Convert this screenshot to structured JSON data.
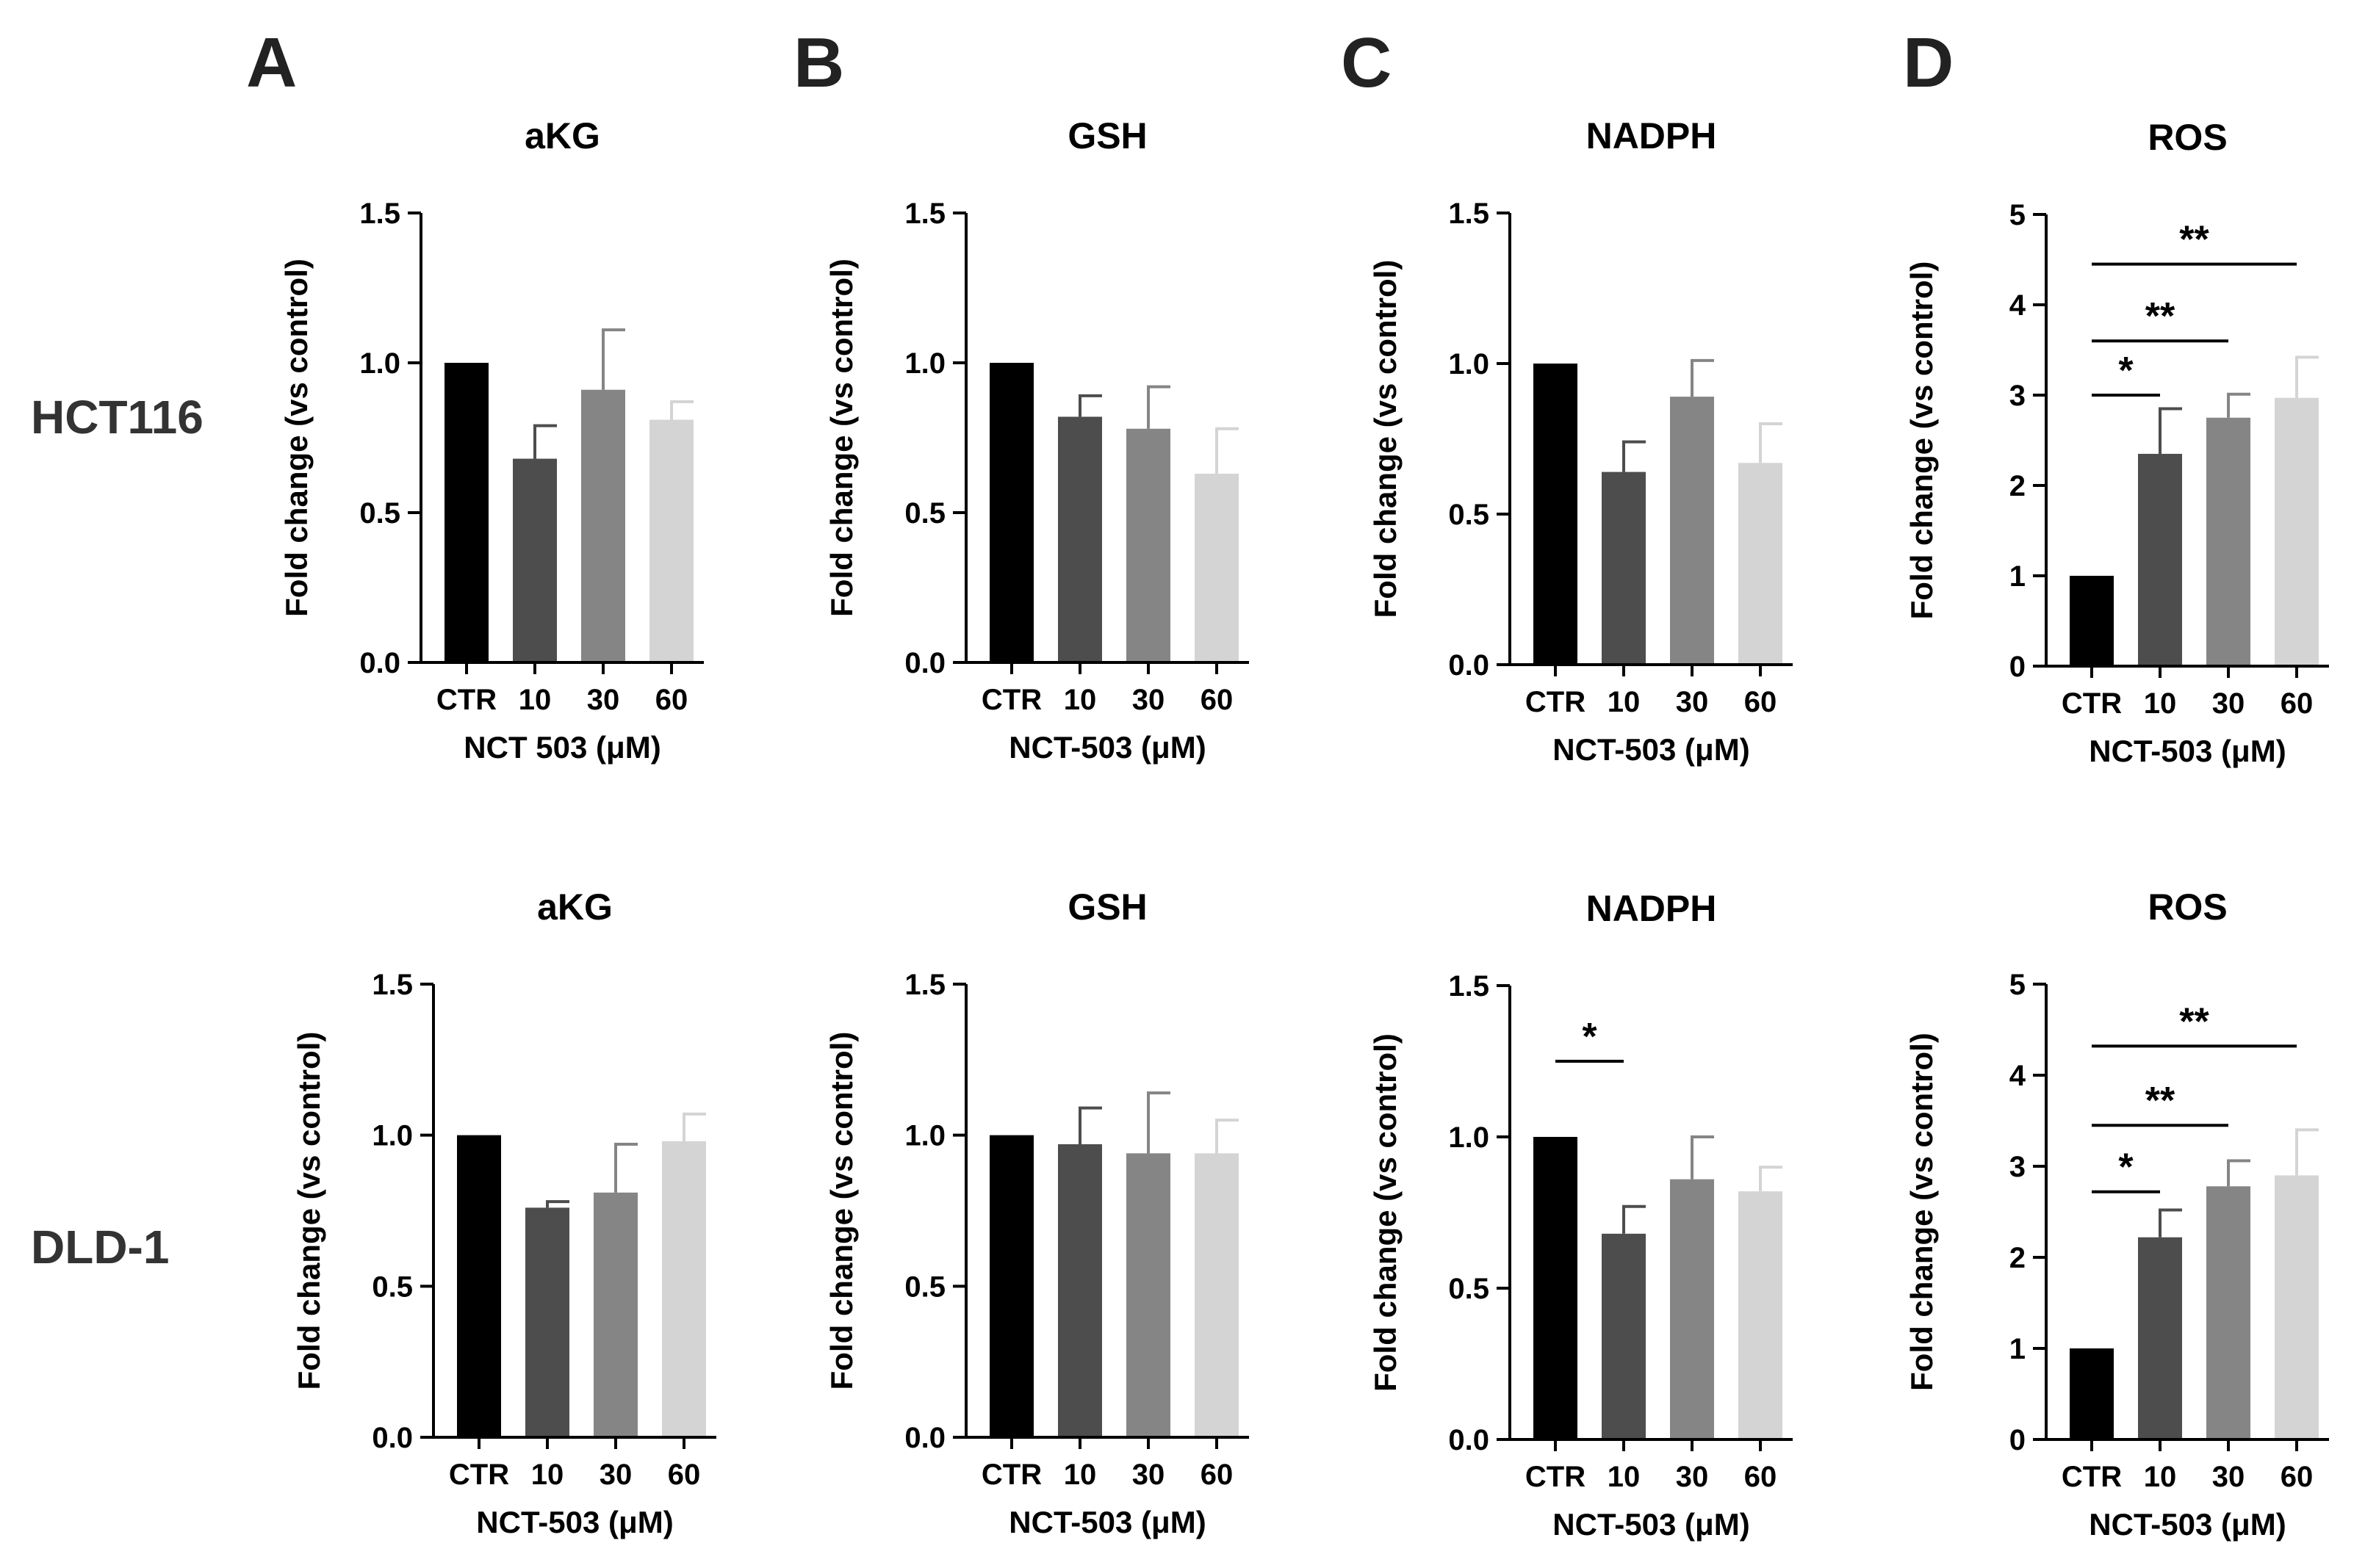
{
  "panel_letters": [
    "A",
    "B",
    "C",
    "D"
  ],
  "row_labels": [
    "HCT116",
    "DLD-1"
  ],
  "categories": [
    "CTR",
    "10",
    "30",
    "60"
  ],
  "colors": {
    "bars": [
      "#000000",
      "#4d4d4d",
      "#858585",
      "#d4d4d4"
    ],
    "axis": "#000000",
    "sig_line": "#000000"
  },
  "chart_data": [
    {
      "type": "bar",
      "panel": "A",
      "row": "HCT116",
      "title": "aKG",
      "xlabel": "NCT 503 (μM)",
      "ylabel": "Fold change (vs control)",
      "categories": [
        "CTR",
        "10",
        "30",
        "60"
      ],
      "values": [
        1.0,
        0.68,
        0.91,
        0.81
      ],
      "errors": [
        0,
        0.11,
        0.2,
        0.06
      ],
      "ylim": [
        0,
        1.5
      ],
      "yticks": [
        0.0,
        0.5,
        1.0,
        1.5
      ],
      "ytick_labels": [
        "0.0",
        "0.5",
        "1.0",
        "1.5"
      ],
      "significance": []
    },
    {
      "type": "bar",
      "panel": "B",
      "row": "HCT116",
      "title": "GSH",
      "xlabel": "NCT-503 (μM)",
      "ylabel": "Fold change (vs control)",
      "categories": [
        "CTR",
        "10",
        "30",
        "60"
      ],
      "values": [
        1.0,
        0.82,
        0.78,
        0.63
      ],
      "errors": [
        0,
        0.07,
        0.14,
        0.15
      ],
      "ylim": [
        0,
        1.5
      ],
      "yticks": [
        0.0,
        0.5,
        1.0,
        1.5
      ],
      "ytick_labels": [
        "0.0",
        "0.5",
        "1.0",
        "1.5"
      ],
      "significance": []
    },
    {
      "type": "bar",
      "panel": "C",
      "row": "HCT116",
      "title": "NADPH",
      "xlabel": "NCT-503 (μM)",
      "ylabel": "Fold change (vs control)",
      "categories": [
        "CTR",
        "10",
        "30",
        "60"
      ],
      "values": [
        1.0,
        0.64,
        0.89,
        0.67
      ],
      "errors": [
        0,
        0.1,
        0.12,
        0.13
      ],
      "ylim": [
        0,
        1.5
      ],
      "yticks": [
        0.0,
        0.5,
        1.0,
        1.5
      ],
      "ytick_labels": [
        "0.0",
        "0.5",
        "1.0",
        "1.5"
      ],
      "significance": []
    },
    {
      "type": "bar",
      "panel": "D",
      "row": "HCT116",
      "title": "ROS",
      "xlabel": "NCT-503 (μM)",
      "ylabel": "Fold change (vs control)",
      "categories": [
        "CTR",
        "10",
        "30",
        "60"
      ],
      "values": [
        1.0,
        2.35,
        2.75,
        2.97
      ],
      "errors": [
        0,
        0.5,
        0.26,
        0.45
      ],
      "ylim": [
        0,
        5
      ],
      "yticks": [
        0,
        1,
        2,
        3,
        4,
        5
      ],
      "ytick_labels": [
        "0",
        "1",
        "2",
        "3",
        "4",
        "5"
      ],
      "significance": [
        {
          "from": 0,
          "to": 1,
          "label": "*",
          "y": 3.0
        },
        {
          "from": 0,
          "to": 2,
          "label": "**",
          "y": 3.6
        },
        {
          "from": 0,
          "to": 3,
          "label": "**",
          "y": 4.45
        }
      ]
    },
    {
      "type": "bar",
      "panel": "A",
      "row": "DLD-1",
      "title": "aKG",
      "xlabel": "NCT-503 (μM)",
      "ylabel": "Fold change (vs control)",
      "categories": [
        "CTR",
        "10",
        "30",
        "60"
      ],
      "values": [
        1.0,
        0.76,
        0.81,
        0.98
      ],
      "errors": [
        0,
        0.02,
        0.16,
        0.09
      ],
      "ylim": [
        0,
        1.5
      ],
      "yticks": [
        0.0,
        0.5,
        1.0,
        1.5
      ],
      "ytick_labels": [
        "0.0",
        "0.5",
        "1.0",
        "1.5"
      ],
      "significance": []
    },
    {
      "type": "bar",
      "panel": "B",
      "row": "DLD-1",
      "title": "GSH",
      "xlabel": "NCT-503 (μM)",
      "ylabel": "Fold change (vs control)",
      "categories": [
        "CTR",
        "10",
        "30",
        "60"
      ],
      "values": [
        1.0,
        0.97,
        0.94,
        0.94
      ],
      "errors": [
        0,
        0.12,
        0.2,
        0.11
      ],
      "ylim": [
        0,
        1.5
      ],
      "yticks": [
        0.0,
        0.5,
        1.0,
        1.5
      ],
      "ytick_labels": [
        "0.0",
        "0.5",
        "1.0",
        "1.5"
      ],
      "significance": []
    },
    {
      "type": "bar",
      "panel": "C",
      "row": "DLD-1",
      "title": "NADPH",
      "xlabel": "NCT-503 (μM)",
      "ylabel": "Fold change (vs control)",
      "categories": [
        "CTR",
        "10",
        "30",
        "60"
      ],
      "values": [
        1.0,
        0.68,
        0.86,
        0.82
      ],
      "errors": [
        0,
        0.09,
        0.14,
        0.08
      ],
      "ylim": [
        0,
        1.5
      ],
      "yticks": [
        0.0,
        0.5,
        1.0,
        1.5
      ],
      "ytick_labels": [
        "0.0",
        "0.5",
        "1.0",
        "1.5"
      ],
      "significance": [
        {
          "from": 0,
          "to": 1,
          "label": "*",
          "y": 1.25
        }
      ]
    },
    {
      "type": "bar",
      "panel": "D",
      "row": "DLD-1",
      "title": "ROS",
      "xlabel": "NCT-503 (μM)",
      "ylabel": "Fold change (vs control)",
      "categories": [
        "CTR",
        "10",
        "30",
        "60"
      ],
      "values": [
        1.0,
        2.22,
        2.78,
        2.9
      ],
      "errors": [
        0,
        0.3,
        0.28,
        0.5
      ],
      "ylim": [
        0,
        5
      ],
      "yticks": [
        0,
        1,
        2,
        3,
        4,
        5
      ],
      "ytick_labels": [
        "0",
        "1",
        "2",
        "3",
        "4",
        "5"
      ],
      "significance": [
        {
          "from": 0,
          "to": 1,
          "label": "*",
          "y": 2.72
        },
        {
          "from": 0,
          "to": 2,
          "label": "**",
          "y": 3.45
        },
        {
          "from": 0,
          "to": 3,
          "label": "**",
          "y": 4.32
        }
      ]
    }
  ]
}
